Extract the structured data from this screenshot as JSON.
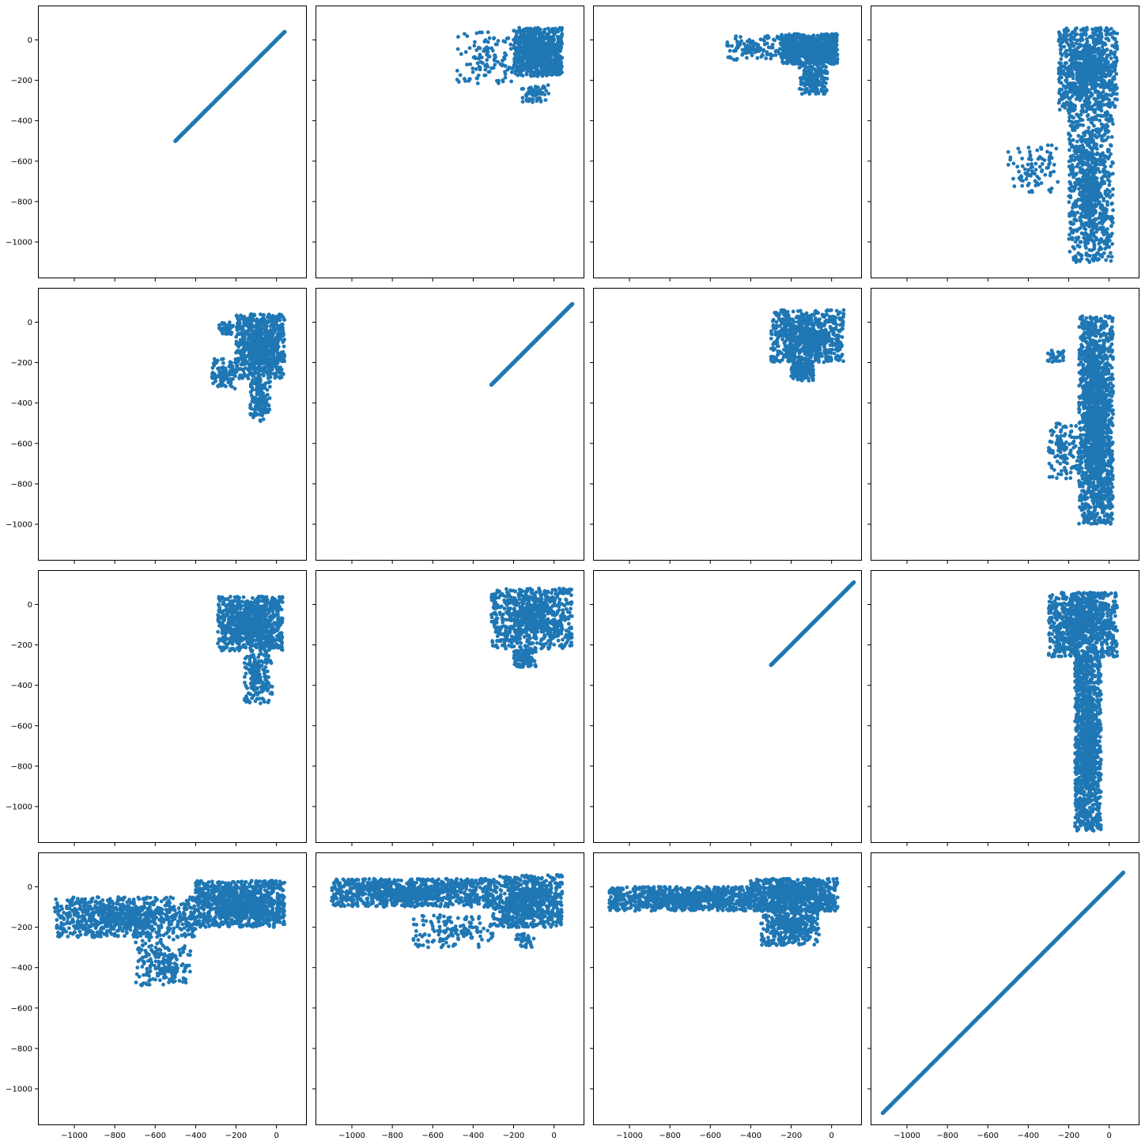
{
  "chart_data": {
    "type": "scatter",
    "layout": "4x4 pair grid, shared x and y axes",
    "point_color": "#1f77b4",
    "xlim": [
      -1180,
      150
    ],
    "ylim": [
      -1180,
      170
    ],
    "x_ticks": [
      -1000,
      -800,
      -600,
      -400,
      -200,
      0
    ],
    "y_ticks": [
      -1000,
      -800,
      -600,
      -400,
      -200,
      0
    ],
    "x_tick_labels": [
      "−1000",
      "−800",
      "−600",
      "−400",
      "−200",
      "0"
    ],
    "y_tick_labels": [
      "−1000",
      "−800",
      "−600",
      "−400",
      "−200",
      "0"
    ],
    "grid": false,
    "panels": [
      {
        "row": 0,
        "col": 0,
        "kind": "diagonal",
        "range": [
          -500,
          40
        ]
      },
      {
        "row": 0,
        "col": 1,
        "kind": "clusters",
        "clusters": [
          {
            "x": [
              -200,
              40
            ],
            "y": [
              -180,
              60
            ],
            "n": 900
          },
          {
            "x": [
              -480,
              -200
            ],
            "y": [
              -220,
              40
            ],
            "n": 120
          },
          {
            "x": [
              -160,
              -20
            ],
            "y": [
              -310,
              -220
            ],
            "n": 60
          }
        ]
      },
      {
        "row": 0,
        "col": 2,
        "kind": "clusters",
        "clusters": [
          {
            "x": [
              -250,
              30
            ],
            "y": [
              -120,
              30
            ],
            "n": 800
          },
          {
            "x": [
              -520,
              -250
            ],
            "y": [
              -100,
              20
            ],
            "n": 120
          },
          {
            "x": [
              -160,
              -20
            ],
            "y": [
              -270,
              -120
            ],
            "n": 200
          }
        ]
      },
      {
        "row": 0,
        "col": 3,
        "kind": "clusters",
        "clusters": [
          {
            "x": [
              -250,
              40
            ],
            "y": [
              -350,
              60
            ],
            "n": 900
          },
          {
            "x": [
              -200,
              20
            ],
            "y": [
              -1100,
              -350
            ],
            "n": 900
          },
          {
            "x": [
              -500,
              -250
            ],
            "y": [
              -760,
              -520
            ],
            "n": 90
          }
        ]
      },
      {
        "row": 1,
        "col": 0,
        "kind": "clusters",
        "clusters": [
          {
            "x": [
              -200,
              40
            ],
            "y": [
              -280,
              40
            ],
            "n": 900
          },
          {
            "x": [
              -320,
              -200
            ],
            "y": [
              -330,
              -180
            ],
            "n": 100
          },
          {
            "x": [
              -130,
              -30
            ],
            "y": [
              -490,
              -280
            ],
            "n": 150
          },
          {
            "x": [
              -290,
              -210
            ],
            "y": [
              -70,
              0
            ],
            "n": 40
          }
        ]
      },
      {
        "row": 1,
        "col": 1,
        "kind": "diagonal",
        "range": [
          -310,
          90
        ]
      },
      {
        "row": 1,
        "col": 2,
        "kind": "clusters",
        "clusters": [
          {
            "x": [
              -300,
              60
            ],
            "y": [
              -200,
              60
            ],
            "n": 800
          },
          {
            "x": [
              -200,
              -90
            ],
            "y": [
              -290,
              -200
            ],
            "n": 150
          }
        ]
      },
      {
        "row": 1,
        "col": 3,
        "kind": "clusters",
        "clusters": [
          {
            "x": [
              -150,
              20
            ],
            "y": [
              -1000,
              30
            ],
            "n": 1800
          },
          {
            "x": [
              -300,
              -150
            ],
            "y": [
              -780,
              -500
            ],
            "n": 120
          },
          {
            "x": [
              -310,
              -220
            ],
            "y": [
              -200,
              -140
            ],
            "n": 30
          }
        ]
      },
      {
        "row": 2,
        "col": 0,
        "kind": "clusters",
        "clusters": [
          {
            "x": [
              -290,
              30
            ],
            "y": [
              -230,
              40
            ],
            "n": 900
          },
          {
            "x": [
              -160,
              -20
            ],
            "y": [
              -490,
              -230
            ],
            "n": 200
          }
        ]
      },
      {
        "row": 2,
        "col": 1,
        "kind": "clusters",
        "clusters": [
          {
            "x": [
              -310,
              90
            ],
            "y": [
              -220,
              80
            ],
            "n": 800
          },
          {
            "x": [
              -200,
              -90
            ],
            "y": [
              -310,
              -220
            ],
            "n": 120
          }
        ]
      },
      {
        "row": 2,
        "col": 2,
        "kind": "diagonal",
        "range": [
          -300,
          110
        ]
      },
      {
        "row": 2,
        "col": 3,
        "kind": "clusters",
        "clusters": [
          {
            "x": [
              -300,
              40
            ],
            "y": [
              -260,
              60
            ],
            "n": 1000
          },
          {
            "x": [
              -170,
              -40
            ],
            "y": [
              -1120,
              -260
            ],
            "n": 1300
          }
        ]
      },
      {
        "row": 3,
        "col": 0,
        "kind": "clusters",
        "clusters": [
          {
            "x": [
              -1100,
              -400
            ],
            "y": [
              -250,
              -50
            ],
            "n": 900
          },
          {
            "x": [
              -400,
              40
            ],
            "y": [
              -200,
              30
            ],
            "n": 1100
          },
          {
            "x": [
              -700,
              -420
            ],
            "y": [
              -490,
              -260
            ],
            "n": 200
          }
        ]
      },
      {
        "row": 3,
        "col": 1,
        "kind": "clusters",
        "clusters": [
          {
            "x": [
              -1100,
              -300
            ],
            "y": [
              -100,
              40
            ],
            "n": 1000
          },
          {
            "x": [
              -300,
              40
            ],
            "y": [
              -200,
              60
            ],
            "n": 800
          },
          {
            "x": [
              -700,
              -300
            ],
            "y": [
              -300,
              -140
            ],
            "n": 150
          },
          {
            "x": [
              -200,
              -90
            ],
            "y": [
              -300,
              -230
            ],
            "n": 40
          }
        ]
      },
      {
        "row": 3,
        "col": 2,
        "kind": "clusters",
        "clusters": [
          {
            "x": [
              -1100,
              -400
            ],
            "y": [
              -120,
              0
            ],
            "n": 900
          },
          {
            "x": [
              -400,
              30
            ],
            "y": [
              -120,
              40
            ],
            "n": 900
          },
          {
            "x": [
              -350,
              -60
            ],
            "y": [
              -290,
              -100
            ],
            "n": 400
          }
        ]
      },
      {
        "row": 3,
        "col": 3,
        "kind": "diagonal",
        "range": [
          -1120,
          70
        ]
      }
    ]
  }
}
